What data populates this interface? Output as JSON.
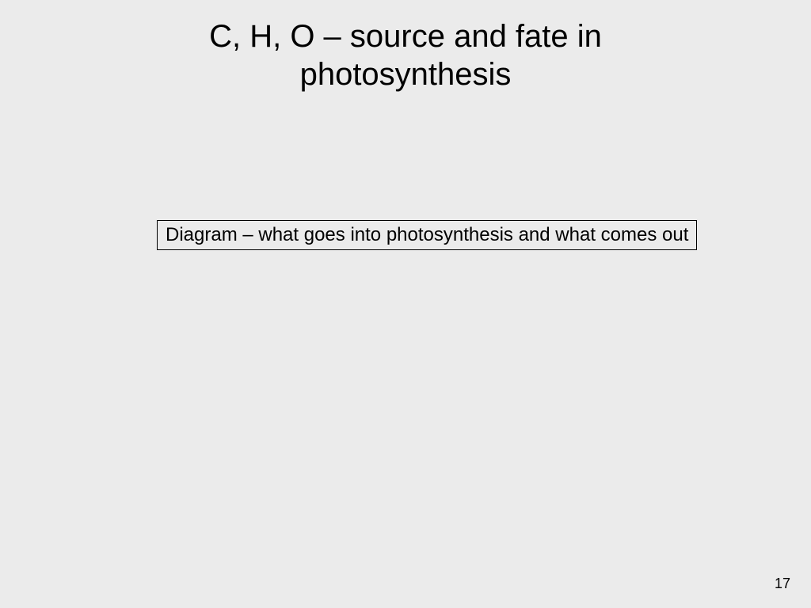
{
  "slide": {
    "title_line1": "C, H, O – source and fate in",
    "title_line2": "photosynthesis",
    "diagram_box_text": "Diagram – what goes into photosynthesis and what comes out",
    "page_number": "17",
    "background_color": "#ebebeb",
    "title_fontsize": 40,
    "title_color": "#000000",
    "box_fontsize": 24,
    "box_border_color": "#000000",
    "box_text_color": "#000000",
    "page_number_fontsize": 18,
    "page_number_color": "#000000"
  }
}
